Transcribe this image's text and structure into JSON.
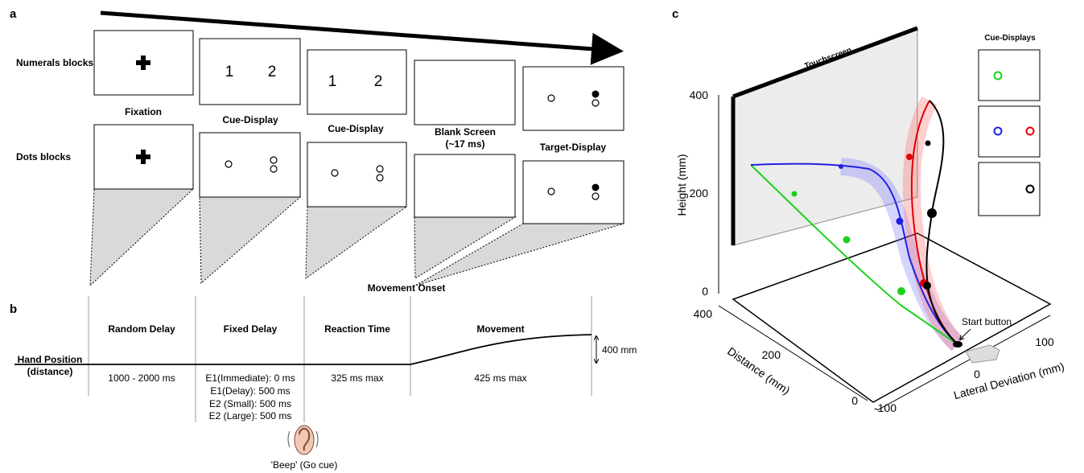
{
  "panel_a": {
    "label": "a",
    "rows": [
      "Numerals blocks",
      "Dots blocks"
    ],
    "numerals": [
      "1",
      "2"
    ],
    "captions": [
      "Fixation",
      "Cue-Display",
      "Cue-Display",
      "Blank Screen",
      "(~17 ms)",
      "Target-Display"
    ],
    "movement_onset": "Movement Onset"
  },
  "panel_b": {
    "label": "b",
    "phases": [
      "Random Delay",
      "Fixed Delay",
      "Reaction Time",
      "Movement"
    ],
    "hand_position": [
      "Hand Position",
      "(distance)"
    ],
    "amplitude": "400 mm",
    "durations": {
      "random": "1000 - 2000 ms",
      "fixed": [
        "E1(Immediate): 0 ms",
        "E1(Delay): 500 ms",
        "E2 (Small): 500 ms",
        "E2 (Large): 500 ms"
      ],
      "reaction": "325 ms max",
      "movement": "425 ms max"
    },
    "go_cue": "'Beep' (Go cue)"
  },
  "panel_c": {
    "label": "c",
    "touchscreen": "Touchscreen",
    "height_axis": {
      "label": "Height (mm)",
      "ticks": [
        400,
        200,
        0
      ]
    },
    "distance_axis": {
      "label": "Distance (mm)",
      "ticks": [
        400,
        200,
        0
      ]
    },
    "lateral_axis": {
      "label": "Lateral Deviation (mm)",
      "ticks": [
        -100,
        0,
        100
      ]
    },
    "start_button": "Start button",
    "cue_displays": "Cue-Displays"
  }
}
